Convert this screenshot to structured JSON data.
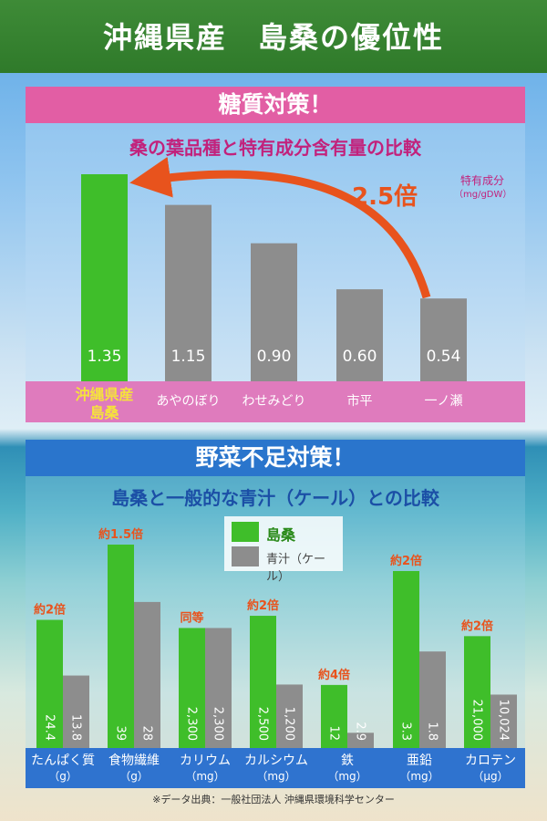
{
  "header": {
    "title": "沖縄県産　島桑の優位性"
  },
  "section1": {
    "heading": "糖質対策！",
    "subtitle": "桑の葉品種と特有成分含有量の比較",
    "unit_line1": "特有成分",
    "unit_line2": "（mg/gDW）",
    "multiplier": "2.5倍"
  },
  "section2": {
    "heading": "野菜不足対策！",
    "subtitle": "島桑と一般的な青汁（ケール）との比較"
  },
  "footer": {
    "source": "※データ出典：一般社団法人 沖縄県環境科学センター"
  },
  "colors": {
    "green": "#3fbe2a",
    "gray": "#8d8d8d",
    "highlight": "#f5e23c",
    "orange": "#e8531d"
  },
  "chart_data": [
    {
      "type": "bar",
      "categories": [
        "沖縄県産\n島桑",
        "あやのぼり",
        "わせみどり",
        "市平",
        "一ノ瀬"
      ],
      "values": [
        1.35,
        1.15,
        0.9,
        0.6,
        0.54
      ],
      "value_labels": [
        "1.35",
        "1.15",
        "0.90",
        "0.60",
        "0.54"
      ],
      "ylabel": "特有成分（mg/gDW）",
      "annotation": "2.5倍"
    },
    {
      "type": "bar",
      "categories": [
        "たんぱく質\n（g）",
        "食物繊維\n（g）",
        "カリウム\n（mg）",
        "カルシウム\n（mg）",
        "鉄\n（mg）",
        "亜鉛\n（mg）",
        "カロテン\n（μg）"
      ],
      "series": [
        {
          "name": "島桑",
          "values": [
            24.4,
            39,
            2300,
            2500,
            12,
            3.3,
            21000
          ],
          "labels": [
            "24.4",
            "39",
            "2,300",
            "2,500",
            "12",
            "3.3",
            "21,000"
          ]
        },
        {
          "name": "青汁（ケール）",
          "values": [
            13.8,
            28,
            2300,
            1200,
            2.9,
            1.8,
            10024
          ],
          "labels": [
            "13.8",
            "28",
            "2,300",
            "1,200",
            "2.9",
            "1.8",
            "10,024"
          ]
        }
      ],
      "annotations": [
        "約2倍",
        "約1.5倍",
        "同等",
        "約2倍",
        "約4倍",
        "約2倍",
        "約2倍"
      ]
    }
  ]
}
